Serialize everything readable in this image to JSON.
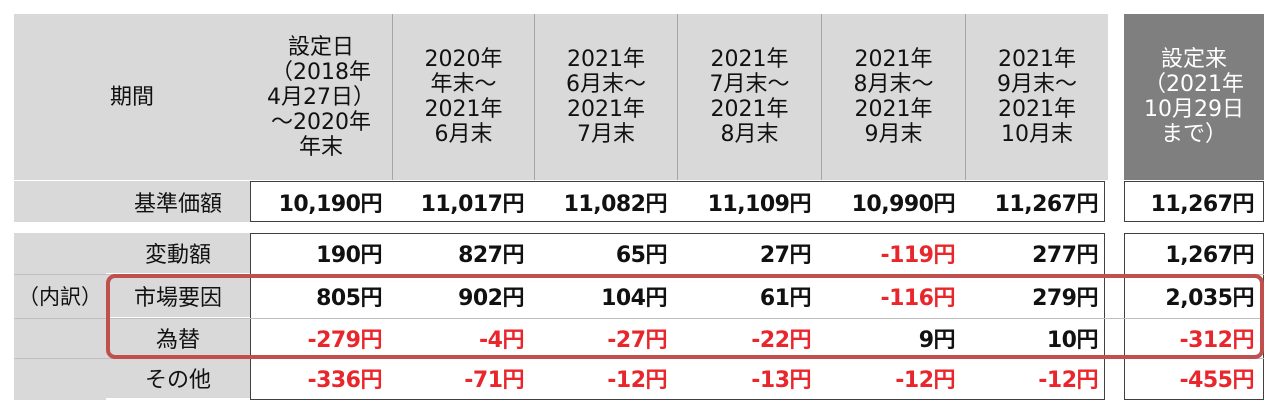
{
  "header": {
    "period_label": "期間",
    "columns": [
      "設定日\n（2018年\n4月27日）\n～2020年\n年末",
      "2020年\n年末～\n2021年\n6月末",
      "2021年\n6月末～\n2021年\n7月末",
      "2021年\n7月末～\n2021年\n8月末",
      "2021年\n8月末～\n2021年\n9月末",
      "2021年\n9月末～\n2021年\n10月末"
    ],
    "since_inception": "設定来\n（2021年\n10月29日\nまで）"
  },
  "nav_row": {
    "label": "基準価額",
    "values": [
      "10,190円",
      "11,017円",
      "11,082円",
      "11,109円",
      "10,990円",
      "11,267円"
    ],
    "total": "11,267円"
  },
  "breakdown_label": "（内訳）",
  "rows": [
    {
      "label": "変動額",
      "values": [
        "190円",
        "827円",
        "65円",
        "27円",
        "-119円",
        "277円"
      ],
      "total": "1,267円"
    },
    {
      "label": "市場要因",
      "values": [
        "805円",
        "902円",
        "104円",
        "61円",
        "-116円",
        "279円"
      ],
      "total": "2,035円"
    },
    {
      "label": "為替",
      "values": [
        "-279円",
        "-4円",
        "-27円",
        "-22円",
        "9円",
        "10円"
      ],
      "total": "-312円"
    },
    {
      "label": "その他",
      "values": [
        "-336円",
        "-71円",
        "-12円",
        "-13円",
        "-12円",
        "-12円"
      ],
      "total": "-455円"
    }
  ],
  "colors": {
    "negative": "#e8262b",
    "highlight_frame": "#c0504d",
    "header_grey": "#d9d9d9",
    "header_dark": "#7f7f7f"
  }
}
